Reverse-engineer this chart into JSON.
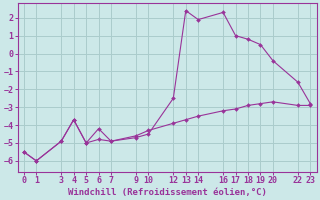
{
  "bg_color": "#cce8e8",
  "grid_color": "#aacccc",
  "line_color": "#993399",
  "x_ticks": [
    0,
    1,
    3,
    4,
    5,
    6,
    7,
    9,
    10,
    12,
    13,
    14,
    16,
    17,
    18,
    19,
    20,
    22,
    23
  ],
  "xlim": [
    -0.5,
    23.5
  ],
  "ylim": [
    -6.6,
    2.8
  ],
  "yticks": [
    -6,
    -5,
    -4,
    -3,
    -2,
    -1,
    0,
    1,
    2
  ],
  "line1_x": [
    0,
    1,
    3,
    4,
    5,
    6,
    7,
    9,
    10,
    12,
    13,
    14,
    16,
    17,
    18,
    19,
    20,
    22,
    23
  ],
  "line1_y": [
    -5.5,
    -6.0,
    -4.9,
    -3.7,
    -5.0,
    -4.8,
    -4.9,
    -4.7,
    -4.5,
    -2.5,
    2.4,
    1.9,
    2.3,
    1.0,
    0.8,
    0.5,
    -0.4,
    -1.6,
    -2.8
  ],
  "line2_x": [
    0,
    1,
    3,
    4,
    5,
    6,
    7,
    9,
    10,
    12,
    13,
    14,
    16,
    17,
    18,
    19,
    20,
    22,
    23
  ],
  "line2_y": [
    -5.5,
    -6.0,
    -4.9,
    -3.7,
    -5.0,
    -4.2,
    -4.9,
    -4.6,
    -4.3,
    -3.9,
    -3.7,
    -3.5,
    -3.2,
    -3.1,
    -2.9,
    -2.8,
    -2.7,
    -2.9,
    -2.9
  ],
  "xlabel": "Windchill (Refroidissement éolien,°C)",
  "tick_fontsize": 6.0,
  "label_fontsize": 6.5
}
